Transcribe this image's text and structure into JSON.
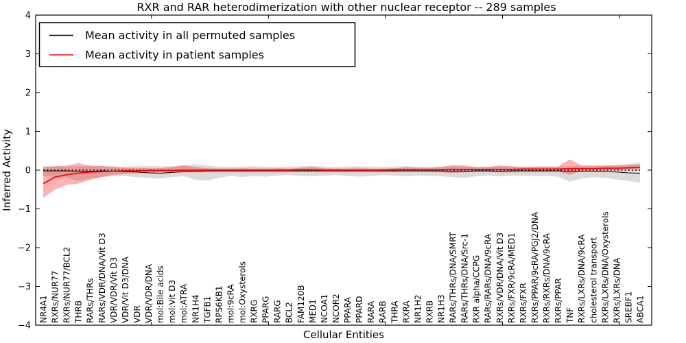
{
  "figure": {
    "title": "RXR and RAR heterodimerization with other nuclear receptor -- 289 samples"
  },
  "chart_data": {
    "type": "line",
    "title": "RXR and RAR heterodimerization with other nuclear receptor -- 289 samples",
    "xlabel": "Cellular Entities",
    "ylabel": "Inferred Activity",
    "ylim": [
      -4,
      4
    ],
    "yticks": [
      -4,
      -3,
      -2,
      -1,
      0,
      1,
      2,
      3,
      4
    ],
    "xtick_step": 10,
    "grid": false,
    "legend_position": "upper left",
    "colors": {
      "permuted_line": "#000000",
      "patient_line": "#ff0000",
      "permuted_band": "#999999",
      "patient_band": "#ff0000",
      "zero_line": "#000000"
    },
    "categories": [
      "NR4A1",
      "RXRs/NUR77",
      "RXRs/NUR77/BCL2",
      "THRB",
      "RARs/THRs",
      "RARs/VDR/DNA/Vit D3",
      "VDR/VDR/Vit D3",
      "VDR/Vit D3/DNA",
      "VDR",
      "VDR/VDR/DNA",
      "mol:Bile acids",
      "mol:Vit D3",
      "mol:ATRA",
      "NR1H4",
      "TGFB1",
      "RPS6KB1",
      "mol:9cRA",
      "mol:Oxysterols",
      "RXRG",
      "PPARG",
      "RARG",
      "BCL2",
      "FAM120B",
      "MED1",
      "NCOA1",
      "NCOR2",
      "PPARA",
      "PPARD",
      "RARA",
      "RARB",
      "THRA",
      "RXRA",
      "NR1H2",
      "RXRB",
      "NR1H3",
      "RARs/THRs/DNA/SMRT",
      "RARs/THRs/DNA/Src-1",
      "RXR alpha/CCPG",
      "RARs/RARs/DNA/9cRA",
      "RXRs/VDR/DNA/Vit D3",
      "RXRs/FXR/9cRA/MED1",
      "RXRs/FXR",
      "RXRs/PPAR/9cRA/PGJ2/DNA",
      "RXRs/RXRs/DNA/9cRA",
      "RXRs/PPAR",
      "TNF",
      "RXRs/LXRs/DNA/9cRA",
      "cholesterol transport",
      "RXRs/LXRs/DNA/Oxysterols",
      "RXRs/LXRs/DNA",
      "SREBF1",
      "ABCA1"
    ],
    "zero_reference": {
      "value": 0,
      "style": "dotted"
    },
    "series": [
      {
        "name": "Mean activity in all permuted samples",
        "color": "#000000",
        "values": [
          -0.02,
          -0.02,
          -0.02,
          -0.03,
          -0.03,
          -0.02,
          -0.03,
          -0.04,
          -0.05,
          -0.07,
          -0.08,
          -0.06,
          -0.04,
          -0.03,
          -0.02,
          -0.02,
          -0.02,
          -0.02,
          -0.02,
          -0.02,
          -0.02,
          -0.02,
          -0.02,
          -0.02,
          -0.02,
          -0.02,
          -0.02,
          -0.02,
          -0.02,
          -0.02,
          -0.02,
          -0.02,
          -0.02,
          -0.02,
          -0.02,
          -0.03,
          -0.03,
          -0.02,
          -0.02,
          -0.03,
          -0.02,
          -0.02,
          -0.02,
          -0.02,
          -0.02,
          -0.03,
          -0.03,
          -0.03,
          -0.04,
          -0.05,
          -0.07,
          -0.08
        ],
        "band_upper": [
          0.1,
          0.1,
          0.09,
          0.1,
          0.1,
          0.12,
          0.1,
          0.09,
          0.1,
          0.11,
          0.1,
          0.1,
          0.13,
          0.15,
          0.12,
          0.09,
          0.08,
          0.09,
          0.1,
          0.09,
          0.08,
          0.09,
          0.1,
          0.11,
          0.09,
          0.08,
          0.09,
          0.1,
          0.09,
          0.08,
          0.09,
          0.1,
          0.09,
          0.08,
          0.09,
          0.1,
          0.09,
          0.08,
          0.09,
          0.1,
          0.09,
          0.08,
          0.09,
          0.1,
          0.09,
          0.1,
          0.11,
          0.1,
          0.11,
          0.13,
          0.16,
          0.19
        ],
        "band_lower": [
          -0.15,
          -0.17,
          -0.2,
          -0.27,
          -0.22,
          -0.18,
          -0.16,
          -0.15,
          -0.18,
          -0.2,
          -0.22,
          -0.18,
          -0.16,
          -0.25,
          -0.27,
          -0.2,
          -0.15,
          -0.18,
          -0.15,
          -0.17,
          -0.14,
          -0.13,
          -0.15,
          -0.16,
          -0.14,
          -0.13,
          -0.15,
          -0.17,
          -0.15,
          -0.13,
          -0.14,
          -0.16,
          -0.14,
          -0.15,
          -0.16,
          -0.18,
          -0.2,
          -0.16,
          -0.14,
          -0.16,
          -0.15,
          -0.14,
          -0.16,
          -0.15,
          -0.17,
          -0.3,
          -0.22,
          -0.18,
          -0.2,
          -0.24,
          -0.28,
          -0.33
        ]
      },
      {
        "name": "Mean activity in patient samples",
        "color": "#ff0000",
        "values": [
          -0.35,
          -0.18,
          -0.12,
          -0.08,
          -0.05,
          -0.04,
          -0.03,
          -0.02,
          -0.02,
          -0.01,
          -0.01,
          -0.01,
          0.0,
          0.0,
          0.0,
          0.0,
          0.0,
          0.0,
          0.0,
          0.0,
          0.0,
          0.0,
          0.01,
          0.01,
          0.0,
          0.0,
          0.0,
          0.0,
          0.0,
          0.0,
          0.01,
          0.01,
          0.01,
          0.01,
          0.01,
          0.02,
          0.02,
          0.02,
          0.02,
          0.02,
          0.02,
          0.03,
          0.03,
          0.03,
          0.03,
          0.04,
          0.04,
          0.04,
          0.05,
          0.05,
          0.06,
          0.07
        ],
        "band_upper": [
          0.08,
          0.1,
          0.12,
          0.18,
          0.12,
          0.1,
          0.08,
          0.06,
          0.06,
          0.05,
          0.05,
          0.08,
          0.12,
          0.08,
          0.05,
          0.04,
          0.04,
          0.05,
          0.04,
          0.04,
          0.05,
          0.04,
          0.06,
          0.08,
          0.05,
          0.04,
          0.04,
          0.05,
          0.04,
          0.04,
          0.05,
          0.07,
          0.06,
          0.06,
          0.08,
          0.13,
          0.12,
          0.08,
          0.08,
          0.12,
          0.1,
          0.08,
          0.09,
          0.08,
          0.09,
          0.28,
          0.12,
          0.12,
          0.13,
          0.12,
          0.13,
          0.15
        ],
        "band_lower": [
          -0.72,
          -0.5,
          -0.38,
          -0.35,
          -0.25,
          -0.18,
          -0.12,
          -0.1,
          -0.08,
          -0.08,
          -0.06,
          -0.06,
          -0.06,
          -0.05,
          -0.05,
          -0.04,
          -0.04,
          -0.05,
          -0.04,
          -0.04,
          -0.04,
          -0.04,
          -0.05,
          -0.05,
          -0.04,
          -0.04,
          -0.04,
          -0.04,
          -0.04,
          -0.04,
          -0.05,
          -0.04,
          -0.04,
          -0.05,
          -0.06,
          -0.07,
          -0.06,
          -0.05,
          -0.05,
          -0.06,
          -0.06,
          -0.05,
          -0.05,
          -0.05,
          -0.04,
          -0.12,
          -0.02,
          -0.01,
          -0.01,
          0.0,
          0.01,
          0.02
        ]
      }
    ]
  }
}
